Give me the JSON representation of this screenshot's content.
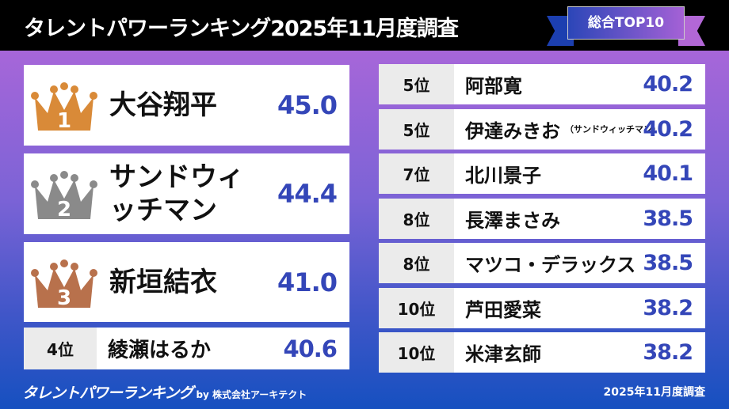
{
  "header": {
    "title": "タレントパワーランキング2025年11月度調査",
    "badge": "総合TOP10"
  },
  "top3": [
    {
      "rank": "1",
      "name": "大谷翔平",
      "score": "45.0",
      "crown_color": "#d98a38"
    },
    {
      "rank": "2",
      "name": "サンドウィッチマン",
      "score": "44.4",
      "crown_color": "#8a8a8a"
    },
    {
      "rank": "3",
      "name": "新垣結衣",
      "score": "41.0",
      "crown_color": "#b8714c"
    }
  ],
  "rank4": {
    "rank": "4位",
    "name": "綾瀬はるか",
    "score": "40.6"
  },
  "right": [
    {
      "rank": "5位",
      "name": "阿部寛",
      "score": "40.2"
    },
    {
      "rank": "5位",
      "name": "伊達みきお",
      "note": "（サンドウィッチマン）",
      "score": "40.2"
    },
    {
      "rank": "7位",
      "name": "北川景子",
      "score": "40.1"
    },
    {
      "rank": "8位",
      "name": "長澤まさみ",
      "score": "38.5"
    },
    {
      "rank": "8位",
      "name": "マツコ・デラックス",
      "score": "38.5"
    },
    {
      "rank": "10位",
      "name": "芦田愛菜",
      "score": "38.2"
    },
    {
      "rank": "10位",
      "name": "米津玄師",
      "score": "38.2"
    }
  ],
  "footer": {
    "logo": "タレントパワーランキング",
    "by": "by 株式会社アーキテクト",
    "date": "2025年11月度調査"
  }
}
